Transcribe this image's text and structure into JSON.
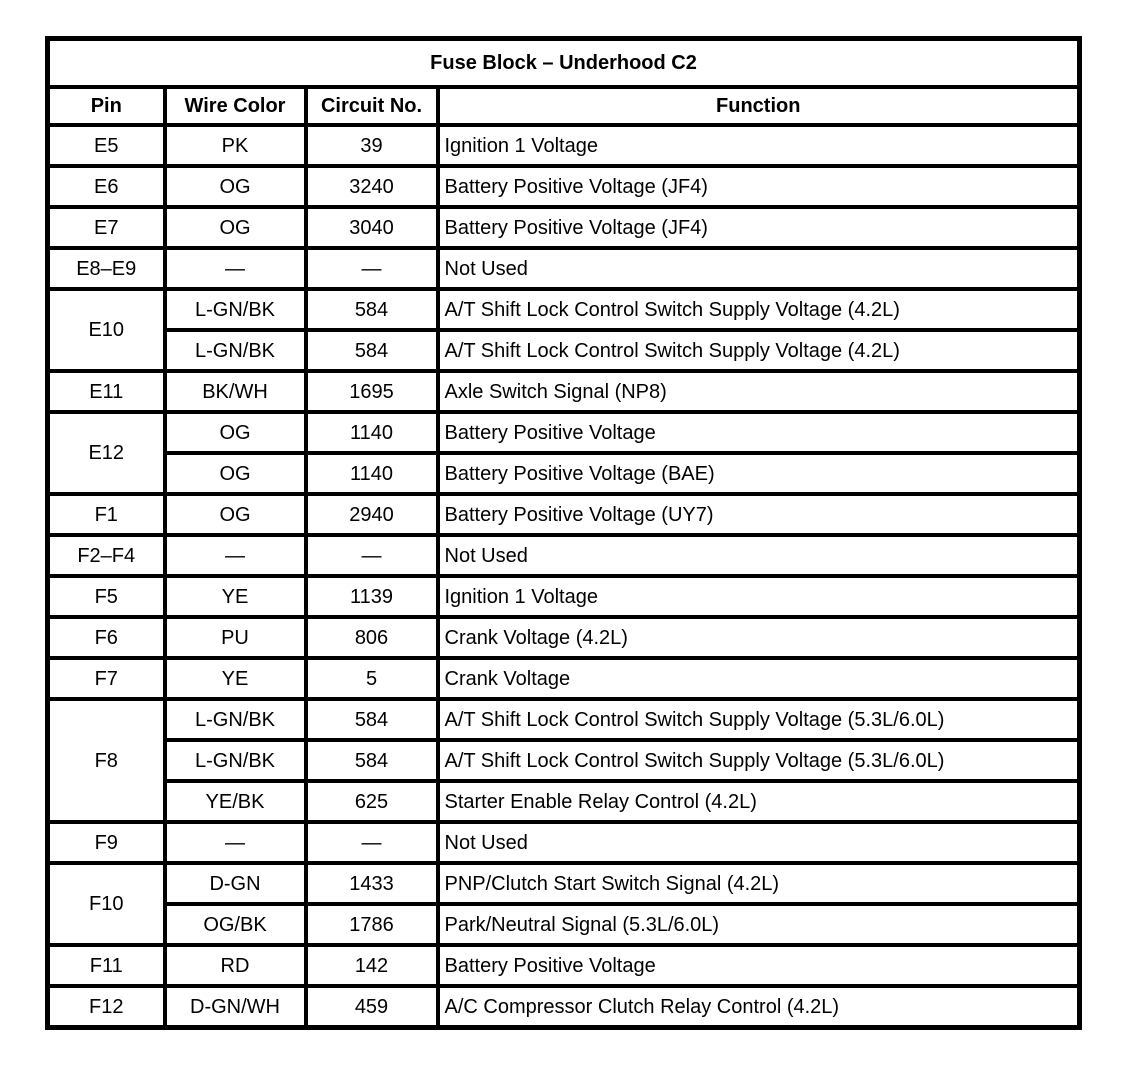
{
  "page": {
    "background_color": "#ffffff",
    "border_color": "#000000",
    "text_color": "#000000"
  },
  "table": {
    "title": "Fuse Block – Underhood C2",
    "columns": [
      "Pin",
      "Wire Color",
      "Circuit No.",
      "Function"
    ],
    "not_used_dash": "—",
    "groups": [
      {
        "pin": "E5",
        "rows": [
          {
            "wire_color": "PK",
            "circuit_no": "39",
            "function": "Ignition 1 Voltage"
          }
        ]
      },
      {
        "pin": "E6",
        "rows": [
          {
            "wire_color": "OG",
            "circuit_no": "3240",
            "function": "Battery Positive Voltage (JF4)"
          }
        ]
      },
      {
        "pin": "E7",
        "rows": [
          {
            "wire_color": "OG",
            "circuit_no": "3040",
            "function": "Battery Positive Voltage (JF4)"
          }
        ]
      },
      {
        "pin": "E8–E9",
        "rows": [
          {
            "wire_color": "—",
            "circuit_no": "—",
            "function": "Not Used"
          }
        ]
      },
      {
        "pin": "E10",
        "rows": [
          {
            "wire_color": "L-GN/BK",
            "circuit_no": "584",
            "function": "A/T Shift Lock Control Switch Supply Voltage (4.2L)"
          },
          {
            "wire_color": "L-GN/BK",
            "circuit_no": "584",
            "function": "A/T Shift Lock Control Switch Supply Voltage (4.2L)"
          }
        ]
      },
      {
        "pin": "E11",
        "rows": [
          {
            "wire_color": "BK/WH",
            "circuit_no": "1695",
            "function": "Axle Switch Signal (NP8)"
          }
        ]
      },
      {
        "pin": "E12",
        "rows": [
          {
            "wire_color": "OG",
            "circuit_no": "1140",
            "function": "Battery Positive Voltage"
          },
          {
            "wire_color": "OG",
            "circuit_no": "1140",
            "function": "Battery Positive Voltage (BAE)"
          }
        ]
      },
      {
        "pin": "F1",
        "rows": [
          {
            "wire_color": "OG",
            "circuit_no": "2940",
            "function": "Battery Positive Voltage (UY7)"
          }
        ]
      },
      {
        "pin": "F2–F4",
        "rows": [
          {
            "wire_color": "—",
            "circuit_no": "—",
            "function": "Not Used"
          }
        ]
      },
      {
        "pin": "F5",
        "rows": [
          {
            "wire_color": "YE",
            "circuit_no": "1139",
            "function": "Ignition 1 Voltage"
          }
        ]
      },
      {
        "pin": "F6",
        "rows": [
          {
            "wire_color": "PU",
            "circuit_no": "806",
            "function": "Crank Voltage (4.2L)"
          }
        ]
      },
      {
        "pin": "F7",
        "rows": [
          {
            "wire_color": "YE",
            "circuit_no": "5",
            "function": "Crank Voltage"
          }
        ]
      },
      {
        "pin": "F8",
        "rows": [
          {
            "wire_color": "L-GN/BK",
            "circuit_no": "584",
            "function": "A/T Shift Lock Control Switch Supply Voltage (5.3L/6.0L)"
          },
          {
            "wire_color": "L-GN/BK",
            "circuit_no": "584",
            "function": "A/T Shift Lock Control Switch Supply Voltage (5.3L/6.0L)"
          },
          {
            "wire_color": "YE/BK",
            "circuit_no": "625",
            "function": "Starter Enable Relay Control (4.2L)"
          }
        ]
      },
      {
        "pin": "F9",
        "rows": [
          {
            "wire_color": "—",
            "circuit_no": "—",
            "function": "Not Used"
          }
        ]
      },
      {
        "pin": "F10",
        "rows": [
          {
            "wire_color": "D-GN",
            "circuit_no": "1433",
            "function": "PNP/Clutch Start Switch Signal (4.2L)"
          },
          {
            "wire_color": "OG/BK",
            "circuit_no": "1786",
            "function": "Park/Neutral Signal (5.3L/6.0L)"
          }
        ]
      },
      {
        "pin": "F11",
        "rows": [
          {
            "wire_color": "RD",
            "circuit_no": "142",
            "function": "Battery Positive Voltage"
          }
        ]
      },
      {
        "pin": "F12",
        "rows": [
          {
            "wire_color": "D-GN/WH",
            "circuit_no": "459",
            "function": "A/C Compressor Clutch Relay Control (4.2L)"
          }
        ]
      }
    ]
  }
}
